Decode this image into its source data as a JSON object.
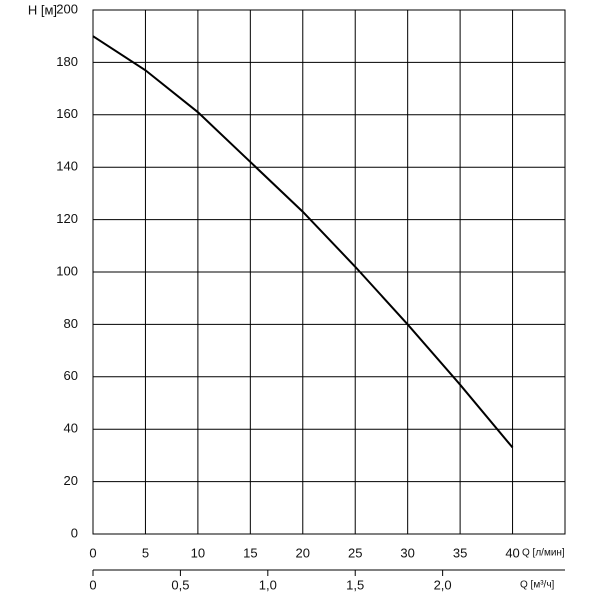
{
  "chart_data": {
    "type": "line",
    "ylabel": "H [м]",
    "xlabel": "Q [л/мин]",
    "x2label": "Q [м³/ч]",
    "x": [
      0,
      5,
      10,
      15,
      20,
      25,
      30,
      35,
      40
    ],
    "values": [
      190,
      177,
      161,
      142,
      123,
      102,
      80,
      57,
      33
    ],
    "color": "#000000",
    "xlim": [
      0,
      45
    ],
    "xticks": [
      0,
      5,
      10,
      15,
      20,
      25,
      30,
      35,
      40
    ],
    "ylim": [
      0,
      200
    ],
    "yticks": [
      0,
      20,
      40,
      60,
      80,
      100,
      120,
      140,
      160,
      180,
      200
    ],
    "x2lim": [
      0,
      2.7
    ],
    "x2ticks": [
      0,
      {
        "value": 0.5,
        "label": "0,5"
      },
      {
        "value": 1.0,
        "label": "1,0"
      },
      {
        "value": 1.5,
        "label": "1,5"
      },
      {
        "value": 2.0,
        "label": "2,0"
      }
    ],
    "grid": true
  }
}
